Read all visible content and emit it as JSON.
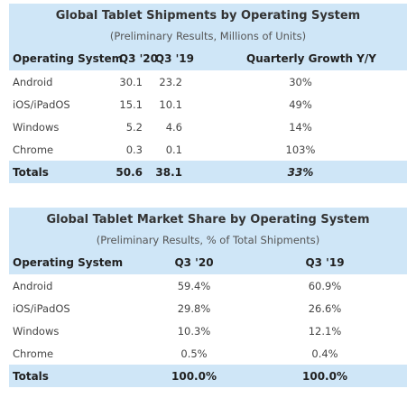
{
  "shipments": {
    "title": "Global Tablet Shipments by Operating System",
    "subtitle": "(Preliminary Results, Millions of Units)",
    "headers": [
      "Operating System",
      "Q3 '20",
      "Q3 '19",
      "Quarterly Growth Y/Y"
    ],
    "rows": [
      [
        "Android",
        "30.1",
        "23.2",
        "30%"
      ],
      [
        "iOS/iPadOS",
        "15.1",
        "10.1",
        "49%"
      ],
      [
        "Windows",
        "5.2",
        "4.6",
        "14%"
      ],
      [
        "Chrome",
        "0.3",
        "0.1",
        "103%"
      ]
    ],
    "totals": [
      "Totals",
      "50.6",
      "38.1",
      "33%"
    ]
  },
  "market_share": {
    "title": "Global Tablet Market Share by Operating System",
    "subtitle": "(Preliminary Results, % of Total Shipments)",
    "headers": [
      "Operating System",
      "Q3 '20",
      "Q3 '19"
    ],
    "rows": [
      [
        "Android",
        "59.4%",
        "60.9%"
      ],
      [
        "iOS/iPadOS",
        "29.8%",
        "26.6%"
      ],
      [
        "Windows",
        "10.3%",
        "12.1%"
      ],
      [
        "Chrome",
        "0.5%",
        "0.4%"
      ]
    ],
    "totals": [
      "Totals",
      "100.0%",
      "100.0%"
    ]
  }
}
